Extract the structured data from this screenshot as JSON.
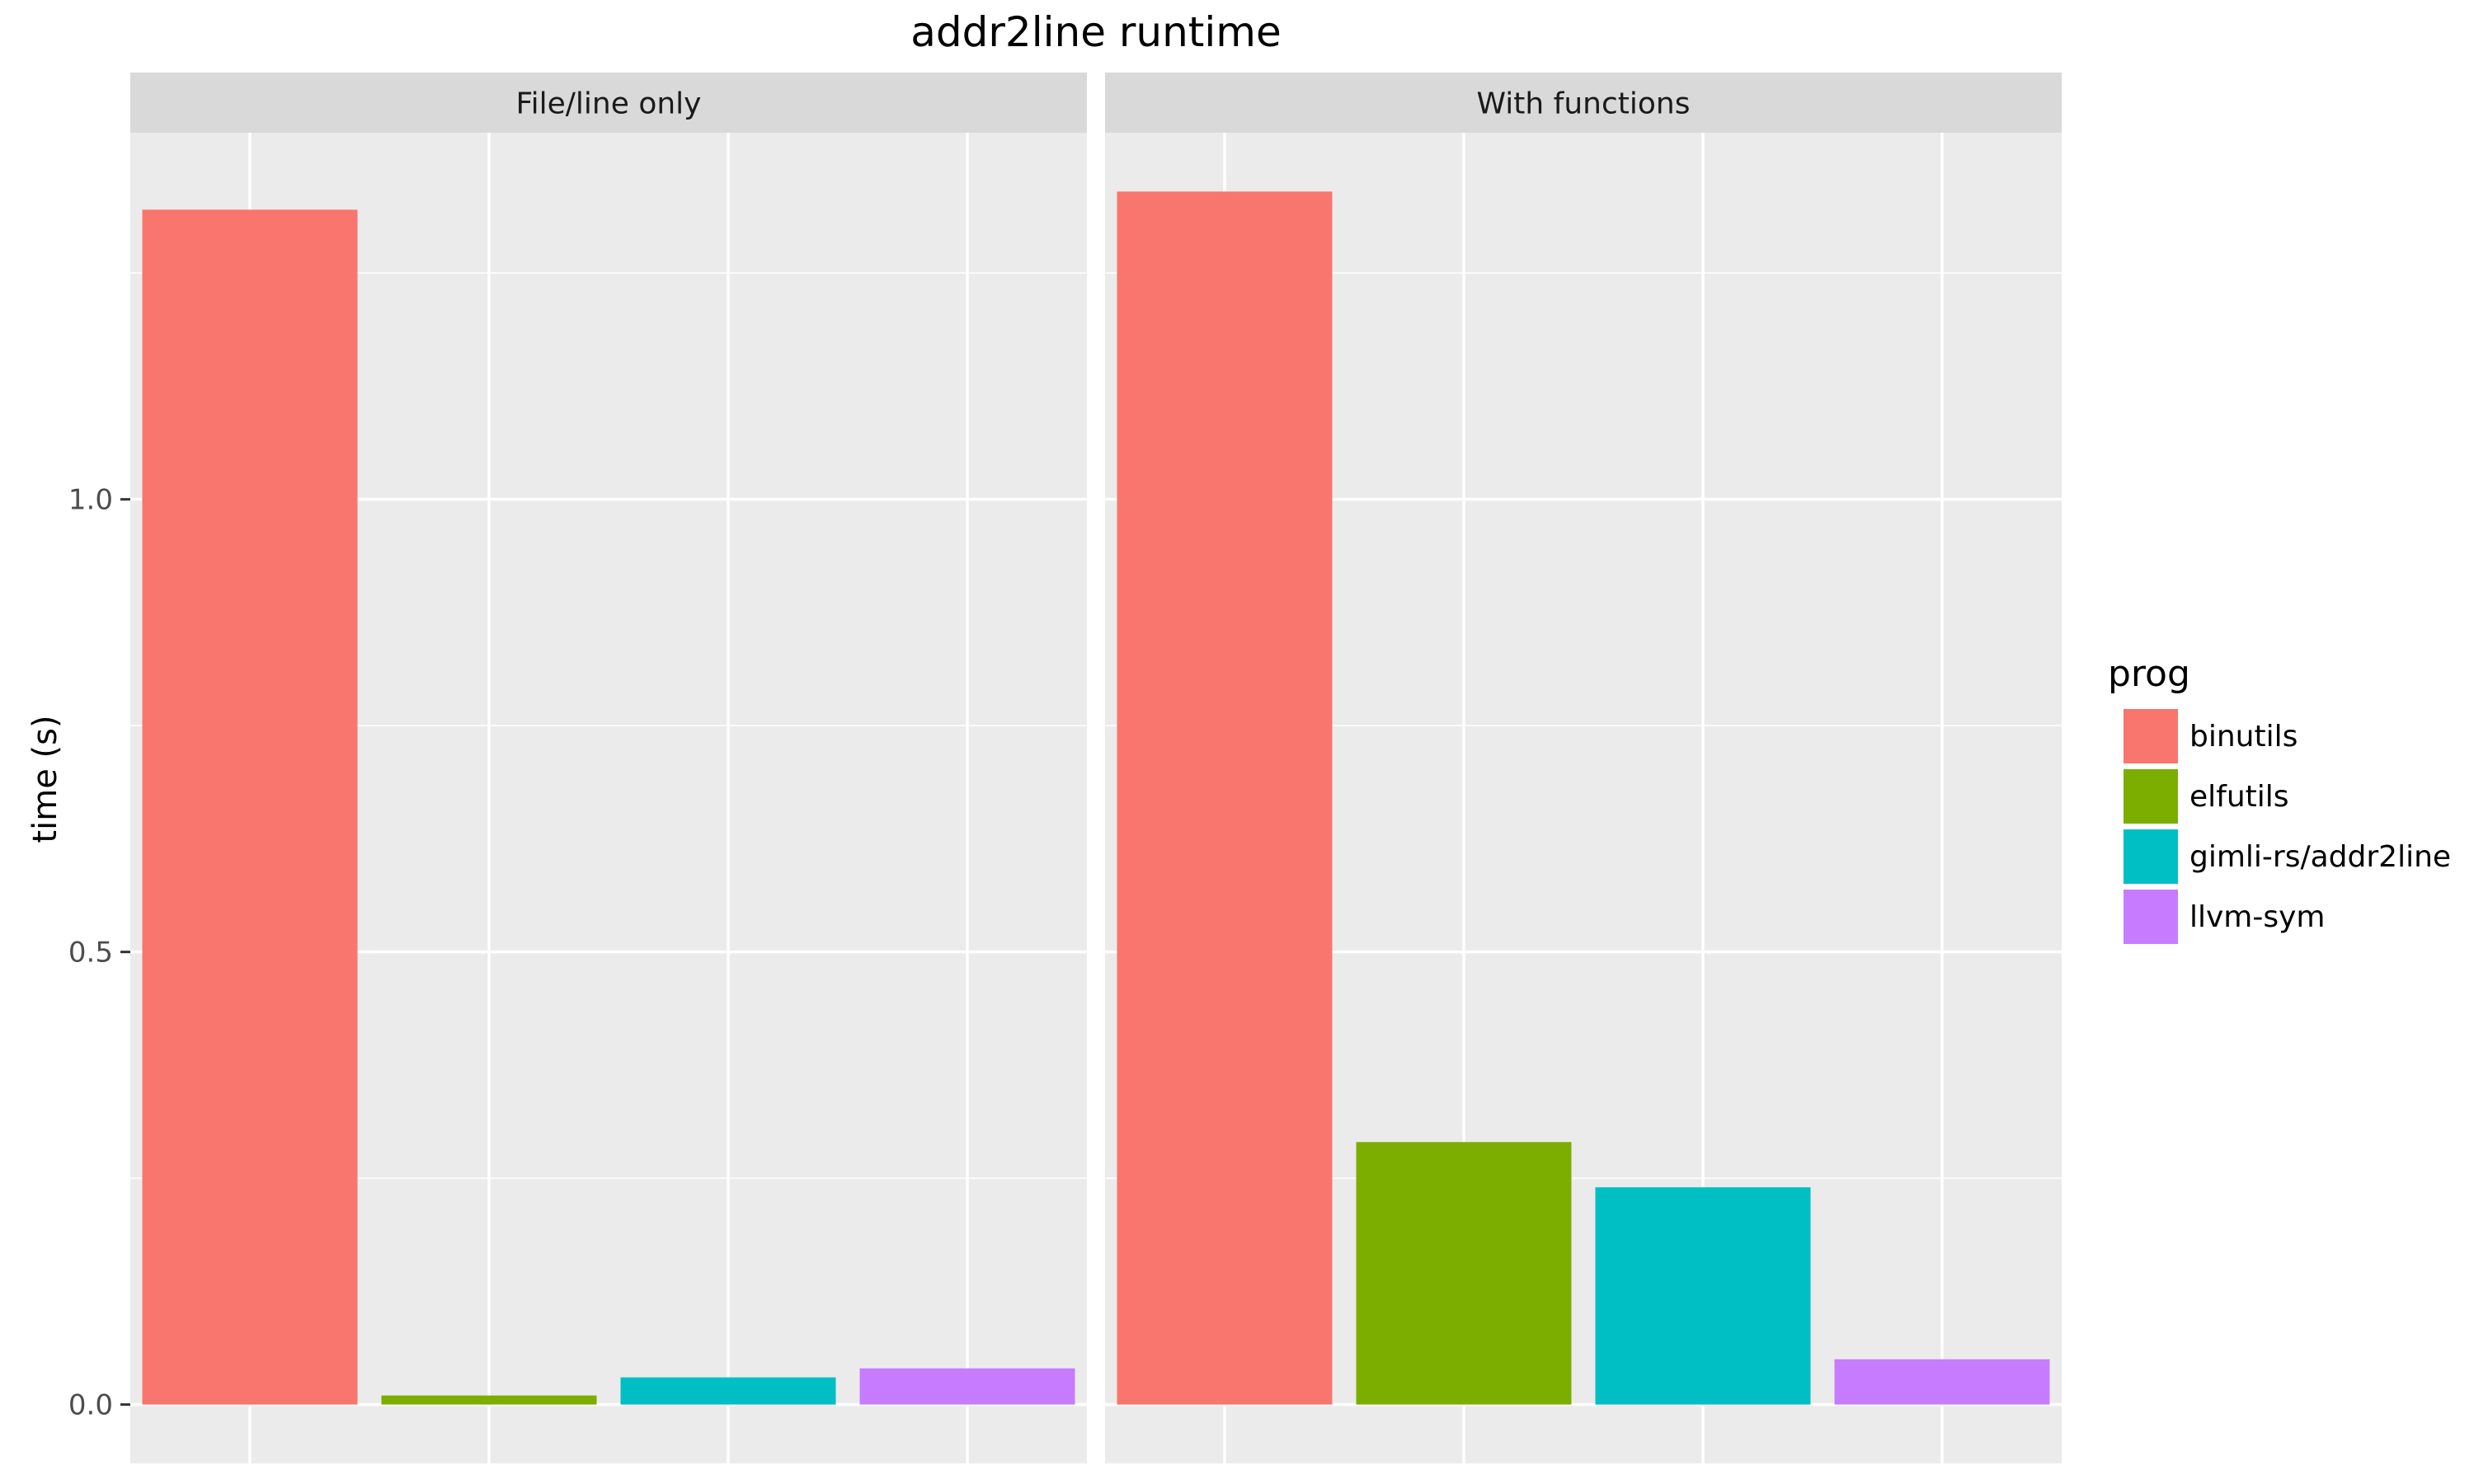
{
  "chart_data": {
    "type": "bar",
    "title": "addr2line runtime",
    "ylabel": "time (s)",
    "xlabel": "",
    "ylim": [
      -0.065,
      1.405
    ],
    "y_ticks": [
      0.0,
      0.5,
      1.0
    ],
    "y_tick_labels": [
      "0.0",
      "0.5",
      "1.0"
    ],
    "categories": [
      "binutils",
      "elfutils",
      "gimli-rs/addr2line",
      "llvm-sym"
    ],
    "facets": [
      {
        "label": "File/line only",
        "values": [
          1.32,
          0.01,
          0.03,
          0.04
        ]
      },
      {
        "label": "With functions",
        "values": [
          1.34,
          0.29,
          0.24,
          0.05
        ]
      }
    ],
    "colors": [
      "#F8766D",
      "#7CAE00",
      "#00BFC4",
      "#C77CFF"
    ],
    "legend": {
      "title": "prog",
      "position": "right"
    },
    "grid": true
  }
}
